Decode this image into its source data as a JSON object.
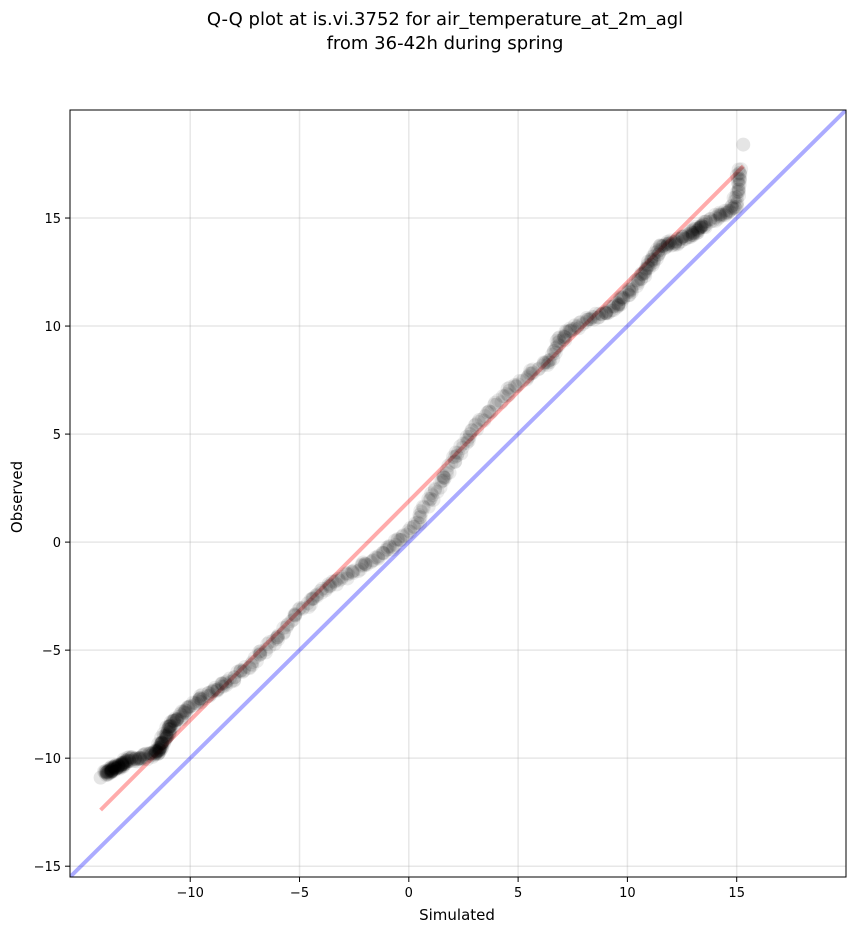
{
  "chart_data": {
    "type": "scatter",
    "title_line1": "Q-Q plot at is.vi.3752 for air_temperature_at_2m_agl",
    "title_line2": "from 36-42h during spring",
    "xlabel": "Simulated",
    "ylabel": "Observed",
    "xlim": [
      -15.5,
      20
    ],
    "ylim": [
      -15.5,
      20
    ],
    "xticks": [
      -10,
      -5,
      0,
      5,
      10,
      15
    ],
    "yticks": [
      -15,
      -10,
      -5,
      0,
      5,
      10,
      15
    ],
    "xtick_labels": [
      "−10",
      "−5",
      "0",
      "5",
      "10",
      "15"
    ],
    "ytick_labels": [
      "−15",
      "−10",
      "−5",
      "0",
      "5",
      "10",
      "15"
    ],
    "grid": true,
    "colors": {
      "points": "#000000",
      "fit_line": "#ff0000",
      "identity_line": "#0000ff",
      "grid": "#b0b0b0"
    },
    "identity_line": {
      "x": [
        -15.5,
        20
      ],
      "y": [
        -15.5,
        20
      ]
    },
    "fit_line": {
      "x": [
        -14.1,
        15.3
      ],
      "y": [
        -12.4,
        17.4
      ]
    },
    "key_points": [
      [
        -14.1,
        -10.9
      ],
      [
        -13.6,
        -10.5
      ],
      [
        -13.2,
        -10.4
      ],
      [
        -12.9,
        -10.1
      ],
      [
        -12.3,
        -10.0
      ],
      [
        -11.6,
        -9.8
      ],
      [
        -11.4,
        -9.6
      ],
      [
        -11.3,
        -9.3
      ],
      [
        -11.1,
        -8.9
      ],
      [
        -10.9,
        -8.5
      ],
      [
        -10.6,
        -8.2
      ],
      [
        -10.2,
        -7.8
      ],
      [
        -9.6,
        -7.3
      ],
      [
        -9.0,
        -6.9
      ],
      [
        -8.4,
        -6.5
      ],
      [
        -7.6,
        -6.0
      ],
      [
        -6.8,
        -5.2
      ],
      [
        -6.0,
        -4.4
      ],
      [
        -5.2,
        -3.4
      ],
      [
        -4.4,
        -2.6
      ],
      [
        -3.6,
        -2.0
      ],
      [
        -2.8,
        -1.5
      ],
      [
        -2.0,
        -1.0
      ],
      [
        -1.2,
        -0.5
      ],
      [
        -0.4,
        0.1
      ],
      [
        0.4,
        0.9
      ],
      [
        1.0,
        2.0
      ],
      [
        1.6,
        3.0
      ],
      [
        2.2,
        4.0
      ],
      [
        2.8,
        5.0
      ],
      [
        3.6,
        6.0
      ],
      [
        4.6,
        7.0
      ],
      [
        5.6,
        7.8
      ],
      [
        6.4,
        8.4
      ],
      [
        6.9,
        9.3
      ],
      [
        7.4,
        9.8
      ],
      [
        8.2,
        10.3
      ],
      [
        9.0,
        10.6
      ],
      [
        9.6,
        11.0
      ],
      [
        10.1,
        11.6
      ],
      [
        10.7,
        12.4
      ],
      [
        11.1,
        13.0
      ],
      [
        11.6,
        13.7
      ],
      [
        12.2,
        13.9
      ],
      [
        13.0,
        14.3
      ],
      [
        13.5,
        14.7
      ],
      [
        14.9,
        15.5
      ],
      [
        15.3,
        18.4
      ]
    ],
    "dense_points": 700,
    "point_spread": 0.25
  }
}
